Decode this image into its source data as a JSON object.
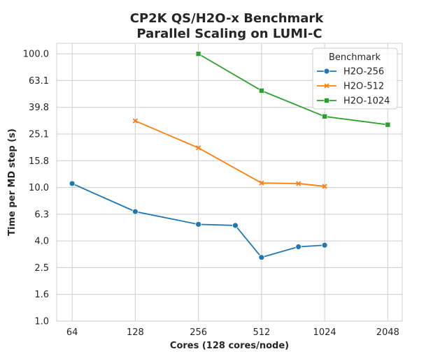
{
  "chart_data": {
    "type": "line",
    "title_lines": [
      "CP2K QS/H2O-x Benchmark",
      "Parallel Scaling on LUMI-C"
    ],
    "xlabel": "Cores (128 cores/node)",
    "ylabel": "Time per MD step (s)",
    "x_scale": "log2",
    "y_scale": "log10",
    "xlim": [
      54,
      2400
    ],
    "ylim": [
      1.0,
      120.0
    ],
    "xticks": [
      64,
      128,
      256,
      512,
      1024,
      2048
    ],
    "xtick_labels": [
      "64",
      "128",
      "256",
      "512",
      "1024",
      "2048"
    ],
    "yticks": [
      1.0,
      1.585,
      2.512,
      3.981,
      6.31,
      10.0,
      15.85,
      25.12,
      39.81,
      63.1,
      100.0
    ],
    "ytick_labels": [
      "1.0",
      "1.6",
      "2.5",
      "4.0",
      "6.3",
      "10.0",
      "15.8",
      "25.1",
      "39.8",
      "63.1",
      "100.0"
    ],
    "grid": true,
    "legend": {
      "title": "Benchmark",
      "placement": "top-right"
    },
    "series": [
      {
        "name": "H2O-256",
        "color": "#1f77b4",
        "marker": "circle",
        "points": [
          [
            64,
            10.7
          ],
          [
            128,
            6.6
          ],
          [
            256,
            5.3
          ],
          [
            384,
            5.2
          ],
          [
            512,
            3.0
          ],
          [
            768,
            3.6
          ],
          [
            1024,
            3.7
          ]
        ]
      },
      {
        "name": "H2O-512",
        "color": "#ff7f0e",
        "marker": "x",
        "points": [
          [
            128,
            31.5
          ],
          [
            256,
            19.8
          ],
          [
            512,
            10.8
          ],
          [
            768,
            10.7
          ],
          [
            1024,
            10.2
          ]
        ]
      },
      {
        "name": "H2O-1024",
        "color": "#2ca02c",
        "marker": "square",
        "points": [
          [
            256,
            100.0
          ],
          [
            512,
            53.0
          ],
          [
            1024,
            34.0
          ],
          [
            2048,
            29.5
          ]
        ]
      }
    ]
  }
}
